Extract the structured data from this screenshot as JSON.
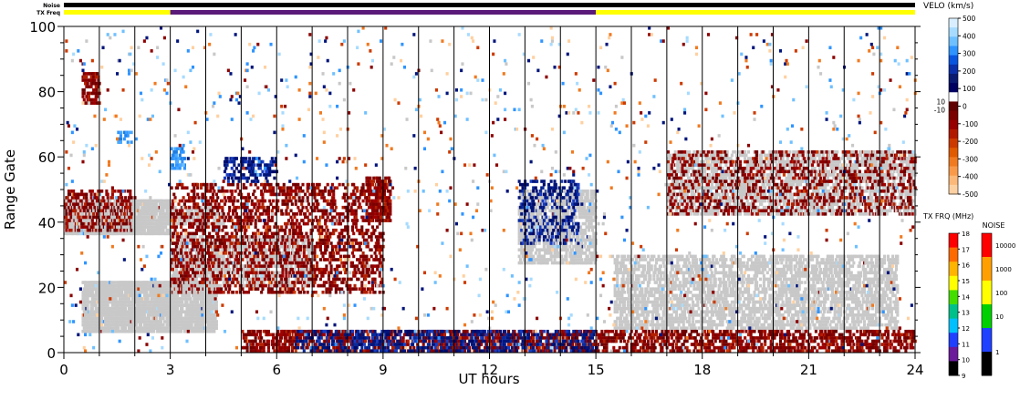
{
  "chart_data": {
    "type": "heatmap",
    "xlabel": "UT hours",
    "ylabel": "Range Gate",
    "xlim": [
      0,
      24
    ],
    "ylim": [
      0,
      100
    ],
    "x_ticks": [
      0,
      3,
      6,
      9,
      12,
      15,
      18,
      21,
      24
    ],
    "y_ticks": [
      0,
      20,
      40,
      60,
      80,
      100
    ],
    "minor_x_step_hours": 1,
    "status_bars": [
      {
        "label": "Noise",
        "segments": [
          {
            "start": 0,
            "end": 24,
            "color": "#000000"
          }
        ]
      },
      {
        "label": "TX Freq",
        "segments": [
          {
            "start": 0,
            "end": 3,
            "color": "#ffff00"
          },
          {
            "start": 3,
            "end": 15,
            "color": "#5a1a7a"
          },
          {
            "start": 15,
            "end": 24,
            "color": "#ffff00"
          }
        ]
      }
    ],
    "velocity_colorbar": {
      "title": "VELO (km/s)",
      "ticks": [
        "500",
        "400",
        "300",
        "200",
        "100",
        "0",
        "-100",
        "-200",
        "-300",
        "-400",
        "-500"
      ],
      "side_labels": [
        "10",
        "-10"
      ],
      "colors": [
        "#d9efff",
        "#a7dbff",
        "#6fc0ff",
        "#2f94ff",
        "#0a55e0",
        "#0a2fa8",
        "#0a1a70",
        "#000060",
        "#ffffff",
        "#600000",
        "#7a0000",
        "#960000",
        "#b21a00",
        "#cc3a00",
        "#e05a00",
        "#f07a20",
        "#f89a4a",
        "#fbb878",
        "#fdd0a2"
      ]
    },
    "txfreq_colorbar": {
      "title": "TX FRQ (MHz)",
      "ticks": [
        "18",
        "17",
        "16",
        "15",
        "14",
        "13",
        "12",
        "11",
        "10",
        "9"
      ],
      "colors": [
        "#ff0000",
        "#ff6a00",
        "#ffb400",
        "#ffff00",
        "#44dd00",
        "#00c08a",
        "#00bfff",
        "#2040ff",
        "#6a1a9a",
        "#000000"
      ]
    },
    "noise_colorbar": {
      "title": "NOISE",
      "ticks": [
        "10000",
        "1000",
        "100",
        "10",
        "1"
      ],
      "colors": [
        "#ff0000",
        "#ffa000",
        "#ffff00",
        "#00d000",
        "#2040ff",
        "#000000"
      ]
    },
    "ground_scatter_color": "#c8c8c8",
    "echo_regions": [
      {
        "kind": "ground",
        "t0": 0.0,
        "t1": 3.0,
        "g0": 36,
        "g1": 47,
        "density": 0.82
      },
      {
        "kind": "ground",
        "t0": 3.0,
        "t1": 4.5,
        "g0": 39,
        "g1": 45,
        "density": 0.55
      },
      {
        "kind": "ground",
        "t0": 0.5,
        "t1": 4.3,
        "g0": 6,
        "g1": 22,
        "density": 0.8
      },
      {
        "kind": "ground",
        "t0": 3.0,
        "t1": 7.0,
        "g0": 20,
        "g1": 36,
        "density": 0.45
      },
      {
        "kind": "ground",
        "t0": 12.8,
        "t1": 15.0,
        "g0": 27,
        "g1": 50,
        "density": 0.55
      },
      {
        "kind": "ground",
        "t0": 15.5,
        "t1": 23.5,
        "g0": 7,
        "g1": 30,
        "density": 0.5
      },
      {
        "kind": "ground",
        "t0": 17.0,
        "t1": 24.0,
        "g0": 42,
        "g1": 62,
        "density": 0.45
      },
      {
        "kind": "neg",
        "t0": 0.0,
        "t1": 1.9,
        "g0": 37,
        "g1": 50,
        "density": 0.45
      },
      {
        "kind": "neg",
        "t0": 0.5,
        "t1": 1.0,
        "g0": 76,
        "g1": 86,
        "density": 0.5
      },
      {
        "kind": "neg",
        "t0": 3.0,
        "t1": 9.0,
        "g0": 18,
        "g1": 52,
        "density": 0.32
      },
      {
        "kind": "neg",
        "t0": 8.5,
        "t1": 9.2,
        "g0": 40,
        "g1": 54,
        "density": 0.6
      },
      {
        "kind": "neg",
        "t0": 17.0,
        "t1": 24.0,
        "g0": 42,
        "g1": 62,
        "density": 0.22
      },
      {
        "kind": "neg",
        "t0": 5.0,
        "t1": 24.0,
        "g0": 0,
        "g1": 7,
        "density": 0.45
      },
      {
        "kind": "pos",
        "t0": 4.5,
        "t1": 6.0,
        "g0": 52,
        "g1": 60,
        "density": 0.4
      },
      {
        "kind": "pos",
        "t0": 12.8,
        "t1": 14.5,
        "g0": 33,
        "g1": 53,
        "density": 0.3
      },
      {
        "kind": "pos",
        "t0": 6.5,
        "t1": 15.0,
        "g0": 0,
        "g1": 7,
        "density": 0.35
      },
      {
        "kind": "poslight",
        "t0": 3.0,
        "t1": 3.4,
        "g0": 56,
        "g1": 63,
        "density": 0.5
      },
      {
        "kind": "poslight",
        "t0": 1.5,
        "t1": 1.9,
        "g0": 64,
        "g1": 68,
        "density": 0.5
      },
      {
        "kind": "noise",
        "t0": 0.0,
        "t1": 24.0,
        "g0": 0,
        "g1": 100,
        "density": 0.05
      }
    ]
  }
}
